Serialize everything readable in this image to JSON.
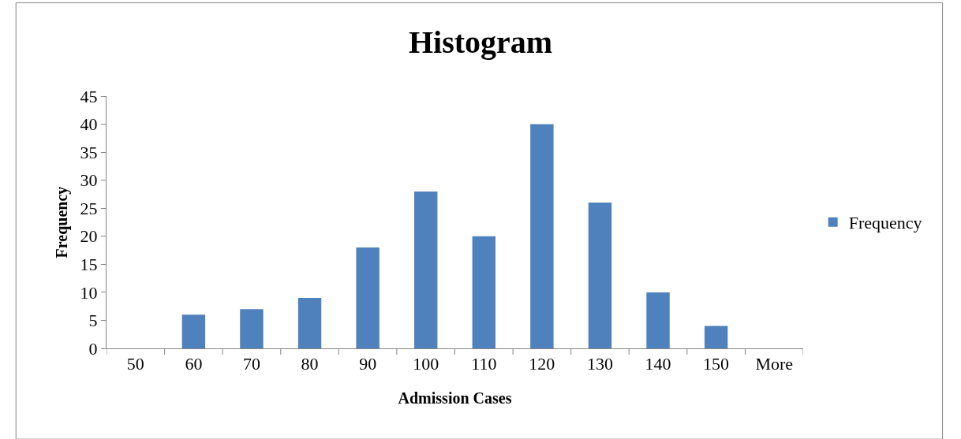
{
  "chart_data": {
    "type": "bar",
    "title": "Histogram",
    "xlabel": "Admission Cases",
    "ylabel": "Frequency",
    "categories": [
      "50",
      "60",
      "70",
      "80",
      "90",
      "100",
      "110",
      "120",
      "130",
      "140",
      "150",
      "More"
    ],
    "series": [
      {
        "name": "Frequency",
        "color": "#4f81bd",
        "values": [
          0,
          6,
          7,
          9,
          18,
          28,
          20,
          40,
          26,
          10,
          4,
          0
        ]
      }
    ],
    "ylim": [
      0,
      45
    ],
    "yticks": [
      0,
      5,
      10,
      15,
      20,
      25,
      30,
      35,
      40,
      45
    ],
    "legend": "right"
  }
}
